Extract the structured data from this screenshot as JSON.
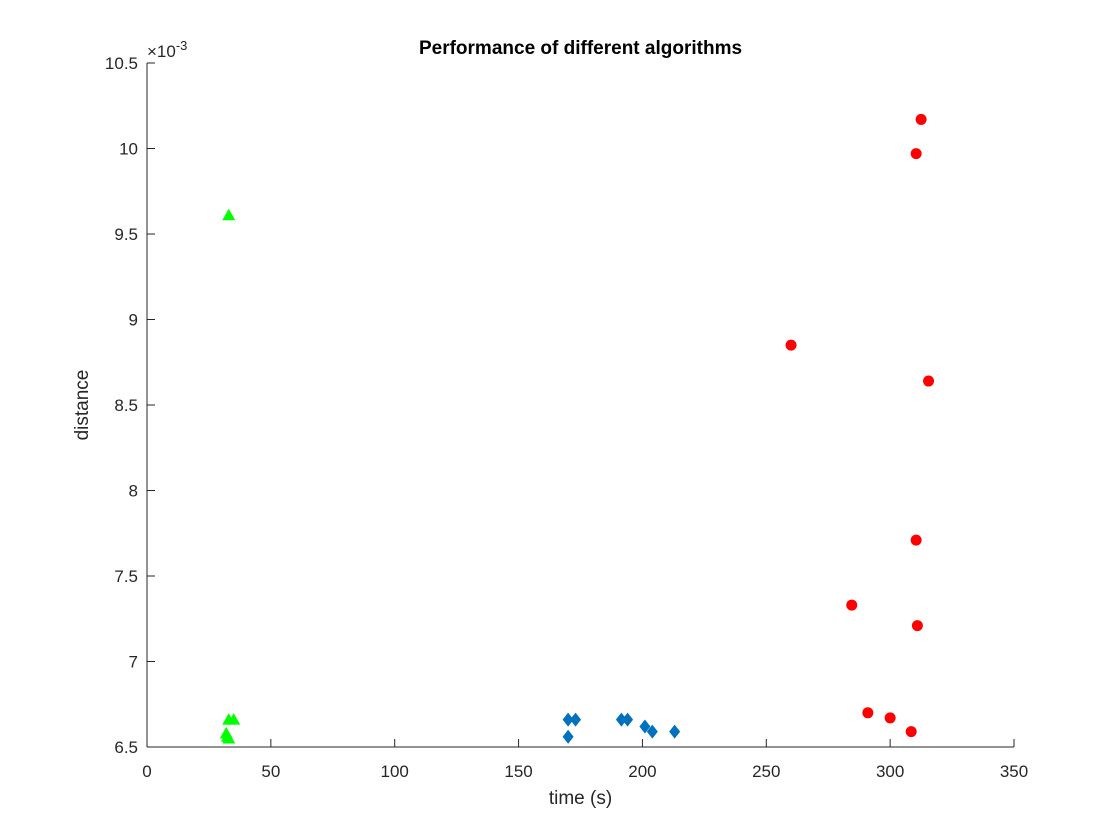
{
  "chart_data": {
    "type": "scatter",
    "title": "Performance of different algorithms",
    "xlabel": "time (s)",
    "ylabel": "distance",
    "xlim": [
      0,
      350
    ],
    "ylim": [
      0.0065,
      0.0105
    ],
    "y_exponent_label": "×10",
    "y_exponent_power": "-3",
    "x_ticks": [
      0,
      50,
      100,
      150,
      200,
      250,
      300,
      350
    ],
    "x_tick_labels": [
      "0",
      "50",
      "100",
      "150",
      "200",
      "250",
      "300",
      "350"
    ],
    "y_ticks": [
      0.0065,
      0.007,
      0.0075,
      0.008,
      0.0085,
      0.009,
      0.0095,
      0.01,
      0.0105
    ],
    "y_tick_labels": [
      "6.5",
      "7",
      "7.5",
      "8",
      "8.5",
      "9",
      "9.5",
      "10",
      "10.5"
    ],
    "grid": false,
    "legend": "none",
    "series": [
      {
        "marker": "triangle",
        "color": "#00ff00",
        "points": [
          {
            "x": 33.0,
            "y": 0.00961
          },
          {
            "x": 33.0,
            "y": 0.00666
          },
          {
            "x": 35.0,
            "y": 0.00666
          },
          {
            "x": 32.0,
            "y": 0.00658
          },
          {
            "x": 32.5,
            "y": 0.00656
          },
          {
            "x": 33.0,
            "y": 0.00655
          }
        ]
      },
      {
        "marker": "diamond",
        "color": "#0072bd",
        "points": [
          {
            "x": 170.0,
            "y": 0.00666
          },
          {
            "x": 173.0,
            "y": 0.00666
          },
          {
            "x": 170.0,
            "y": 0.00656
          },
          {
            "x": 191.5,
            "y": 0.00666
          },
          {
            "x": 194.0,
            "y": 0.00666
          },
          {
            "x": 201.0,
            "y": 0.00662
          },
          {
            "x": 204.0,
            "y": 0.00659
          },
          {
            "x": 213.0,
            "y": 0.00659
          }
        ]
      },
      {
        "marker": "circle",
        "color": "#ff0000",
        "points": [
          {
            "x": 312.5,
            "y": 0.01017
          },
          {
            "x": 310.5,
            "y": 0.00997
          },
          {
            "x": 260.0,
            "y": 0.00885
          },
          {
            "x": 315.5,
            "y": 0.00864
          },
          {
            "x": 310.5,
            "y": 0.00771
          },
          {
            "x": 284.5,
            "y": 0.00733
          },
          {
            "x": 311.0,
            "y": 0.00721
          },
          {
            "x": 291.0,
            "y": 0.0067
          },
          {
            "x": 300.0,
            "y": 0.00667
          },
          {
            "x": 308.5,
            "y": 0.00659
          }
        ]
      }
    ]
  }
}
